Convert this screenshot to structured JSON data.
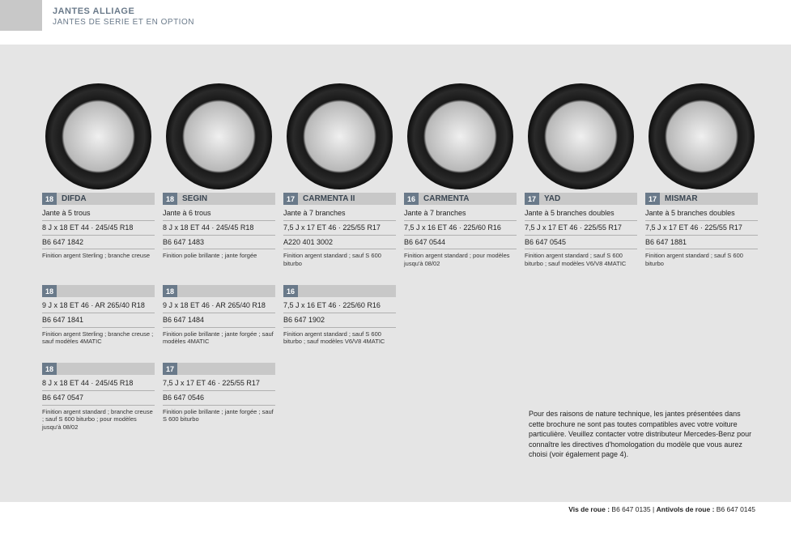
{
  "header": {
    "title": "JANTES ALLIAGE",
    "subtitle": "JANTES DE SERIE ET EN OPTION"
  },
  "wheels": [
    {
      "badge": "18",
      "name": "DIFDA",
      "subtitle": "Jante à 5 trous",
      "spec": "8 J x 18 ET 44 · 245/45 R18",
      "ref": "B6 647 1842",
      "note": "Finition argent Sterling ; branche creuse",
      "image": true
    },
    {
      "badge": "18",
      "name": "SEGIN",
      "subtitle": "Jante à 6 trous",
      "spec": "8 J x 18 ET 44 · 245/45 R18",
      "ref": "B6 647 1483",
      "note": "Finition polie brillante ; jante forgée",
      "image": true
    },
    {
      "badge": "17",
      "name": "CARMENTA II",
      "subtitle": "Jante à 7 branches",
      "spec": "7,5 J x 17 ET 46 · 225/55 R17",
      "ref": "A220 401 3002",
      "note": "Finition argent standard ; sauf S 600 biturbo",
      "image": true
    },
    {
      "badge": "16",
      "name": "CARMENTA",
      "subtitle": "Jante à 7 branches",
      "spec": "7,5 J x 16 ET 46 · 225/60 R16",
      "ref": "B6 647 0544",
      "note": "Finition argent standard ; pour modèles jusqu'à 08/02",
      "image": true
    },
    {
      "badge": "17",
      "name": "YAD",
      "subtitle": "Jante à 5 branches doubles",
      "spec": "7,5 J x 17 ET 46 · 225/55 R17",
      "ref": "B6 647 0545",
      "note": "Finition argent standard ; sauf S 600 biturbo ; sauf modèles V6/V8 4MATIC",
      "image": true
    },
    {
      "badge": "17",
      "name": "MISMAR",
      "subtitle": "Jante à 5 branches doubles",
      "spec": "7,5 J x 17 ET 46 · 225/55 R17",
      "ref": "B6 647 1881",
      "note": "Finition argent standard ; sauf S 600 biturbo",
      "image": true
    },
    {
      "badge": "18",
      "name": "",
      "subtitle": "",
      "spec": "9 J x 18 ET 46 · AR 265/40 R18",
      "ref": "B6 647 1841",
      "note": "Finition argent Sterling ; branche creuse ; sauf modèles 4MATIC",
      "image": false
    },
    {
      "badge": "18",
      "name": "",
      "subtitle": "",
      "spec": "9 J x 18 ET 46 · AR 265/40 R18",
      "ref": "B6 647 1484",
      "note": "Finition polie brillante ; jante forgée ; sauf modèles 4MATIC",
      "image": false
    },
    {
      "badge": "16",
      "name": "",
      "subtitle": "",
      "spec": "7,5 J x 16 ET 46 · 225/60 R16",
      "ref": "B6 647 1902",
      "note": "Finition argent standard ; sauf S 600 biturbo ; sauf modèles V6/V8 4MATIC",
      "image": false
    },
    null,
    null,
    null,
    {
      "badge": "18",
      "name": "",
      "subtitle": "",
      "spec": "8 J x 18 ET 44 · 245/45 R18",
      "ref": "B6 647 0547",
      "note": "Finition argent standard ; branche creuse ; sauf S 600 biturbo ; pour modèles jusqu'à 08/02",
      "image": false
    },
    {
      "badge": "17",
      "name": "",
      "subtitle": "",
      "spec": "7,5 J x 17 ET 46 · 225/55 R17",
      "ref": "B6 647 0546",
      "note": "Finition polie brillante ; jante forgée ; sauf S 600 biturbo",
      "image": false
    },
    null,
    null,
    null,
    null
  ],
  "disclaimer": "Pour des raisons de nature technique, les jantes présentées dans cette brochure ne sont pas toutes compatibles avec votre voiture particulière. Veuillez contacter votre distributeur Mercedes-Benz pour connaître les directives d'homologation du modèle que vous aurez choisi (voir également page 4).",
  "footer": {
    "vis_label": "Vis de roue :",
    "vis_ref": "B6 647 0135",
    "sep": "|",
    "anti_label": "Antivols de roue :",
    "anti_ref": "B6 647 0145"
  }
}
